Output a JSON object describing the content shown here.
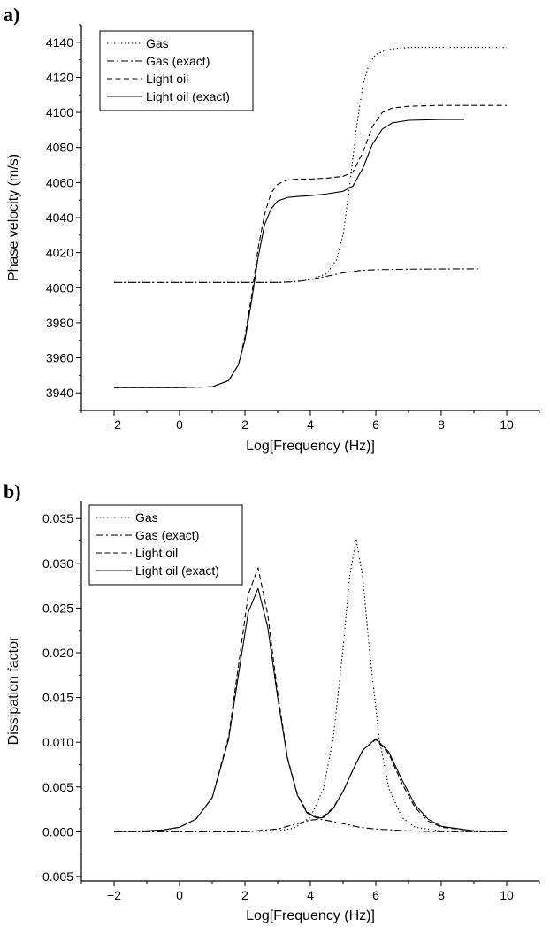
{
  "chart_data": [
    {
      "panel": "a)",
      "type": "line",
      "xlabel": "Log[Frequency (Hz)]",
      "ylabel": "Phase velocity (m/s)",
      "xlim": [
        -3,
        11
      ],
      "ylim": [
        3930,
        4150
      ],
      "xticks": [
        -2,
        0,
        2,
        4,
        6,
        8,
        10
      ],
      "xtick_labels": [
        "−2",
        "0",
        "2",
        "4",
        "6",
        "8",
        "10"
      ],
      "yticks": [
        3940,
        3960,
        3980,
        4000,
        4020,
        4040,
        4060,
        4080,
        4100,
        4120,
        4140
      ],
      "ytick_labels": [
        "3940",
        "3960",
        "3980",
        "4000",
        "4020",
        "4040",
        "4060",
        "4080",
        "4100",
        "4120",
        "4140"
      ],
      "legend": {
        "placement": "top-left",
        "entries": [
          "Gas",
          "Gas (exact)",
          "Light oil",
          "Light oil (exact)"
        ]
      },
      "series": [
        {
          "name": "Gas",
          "style": "dotted",
          "x": [
            -2,
            0,
            2,
            3,
            3.5,
            4,
            4.5,
            4.8,
            5.0,
            5.2,
            5.4,
            5.6,
            5.8,
            6.0,
            6.3,
            6.6,
            7,
            8,
            10
          ],
          "y": [
            4003,
            4003,
            4003,
            4003,
            4003.5,
            4004.5,
            4008,
            4016,
            4030,
            4058,
            4090,
            4115,
            4128,
            4133,
            4135.5,
            4136.5,
            4137,
            4137,
            4137
          ]
        },
        {
          "name": "Gas (exact)",
          "style": "dashdot",
          "x": [
            -2,
            0,
            2,
            3,
            3.5,
            4,
            4.5,
            5,
            5.5,
            6,
            7,
            8,
            9.2
          ],
          "y": [
            4003,
            4003,
            4003,
            4003,
            4003.3,
            4004.5,
            4006.5,
            4008.5,
            4009.8,
            4010.3,
            4010.6,
            4010.7,
            4010.8
          ]
        },
        {
          "name": "Light oil",
          "style": "dashed",
          "x": [
            -2,
            0,
            1,
            1.5,
            1.8,
            2.0,
            2.2,
            2.4,
            2.6,
            2.8,
            3.0,
            3.3,
            3.6,
            4.0,
            4.5,
            5.0,
            5.3,
            5.6,
            5.9,
            6.2,
            6.5,
            7,
            8,
            10
          ],
          "y": [
            3943,
            3943,
            3943.5,
            3947,
            3956,
            3972,
            3995,
            4022,
            4042,
            4054,
            4059,
            4061.5,
            4062,
            4062,
            4062.5,
            4063.5,
            4066,
            4077,
            4092,
            4100,
            4102.5,
            4103.5,
            4104,
            4104
          ]
        },
        {
          "name": "Light oil (exact)",
          "style": "solid",
          "x": [
            -2,
            0,
            1,
            1.5,
            1.8,
            2.0,
            2.2,
            2.4,
            2.6,
            2.8,
            3.0,
            3.3,
            3.6,
            4.0,
            4.5,
            5.0,
            5.3,
            5.6,
            5.9,
            6.2,
            6.5,
            7,
            8,
            8.7
          ],
          "y": [
            3943,
            3943,
            3943.5,
            3947,
            3956,
            3970,
            3992,
            4017,
            4036,
            4045,
            4049.5,
            4051.5,
            4052,
            4052.5,
            4053.5,
            4055,
            4058,
            4068,
            4082,
            4090.5,
            4094,
            4095.5,
            4096,
            4096
          ]
        }
      ]
    },
    {
      "panel": "b)",
      "type": "line",
      "xlabel": "Log[Frequency (Hz)]",
      "ylabel": "Dissipation factor",
      "xlim": [
        -3,
        11
      ],
      "ylim": [
        -0.0055,
        0.037
      ],
      "xticks": [
        -2,
        0,
        2,
        4,
        6,
        8,
        10
      ],
      "xtick_labels": [
        "−2",
        "0",
        "2",
        "4",
        "6",
        "8",
        "10"
      ],
      "yticks": [
        -0.005,
        0.0,
        0.005,
        0.01,
        0.015,
        0.02,
        0.025,
        0.03,
        0.035
      ],
      "ytick_labels": [
        "−0.005",
        "0.000",
        "0.005",
        "0.010",
        "0.015",
        "0.020",
        "0.025",
        "0.030",
        "0.035"
      ],
      "legend": {
        "placement": "top-left",
        "entries": [
          "Gas",
          "Gas (exact)",
          "Light oil",
          "Light oil (exact)"
        ]
      },
      "series": [
        {
          "name": "Gas",
          "style": "dotted",
          "x": [
            -2,
            2,
            3,
            3.5,
            4,
            4.4,
            4.7,
            5.0,
            5.2,
            5.4,
            5.6,
            5.8,
            6.1,
            6.4,
            6.8,
            7.2,
            8,
            9,
            10
          ],
          "y": [
            0,
            0,
            0.0001,
            0.0004,
            0.0016,
            0.0048,
            0.0105,
            0.0205,
            0.0285,
            0.0327,
            0.0285,
            0.0205,
            0.0105,
            0.0048,
            0.0016,
            0.0005,
            0.0001,
            0,
            0
          ]
        },
        {
          "name": "Gas (exact)",
          "style": "dashdot",
          "x": [
            -2,
            2,
            3,
            3.5,
            4,
            4.3,
            4.6,
            5,
            5.5,
            6,
            7,
            8,
            10
          ],
          "y": [
            0,
            0,
            0.0003,
            0.0008,
            0.0013,
            0.0014,
            0.0012,
            0.0009,
            0.0005,
            0.0003,
            0.0001,
            0,
            0
          ]
        },
        {
          "name": "Light oil",
          "style": "dashed",
          "x": [
            -2,
            -1,
            -0.5,
            0,
            0.5,
            1.0,
            1.5,
            1.8,
            2.1,
            2.4,
            2.7,
            3.0,
            3.3,
            3.6,
            3.9,
            4.2,
            4.4,
            4.7,
            5.0,
            5.3,
            5.6,
            6.0,
            6.4,
            6.8,
            7.2,
            7.6,
            8,
            9,
            10
          ],
          "y": [
            0,
            0.0001,
            0.0002,
            0.0005,
            0.0014,
            0.0038,
            0.0106,
            0.0185,
            0.0265,
            0.0295,
            0.0242,
            0.0155,
            0.0083,
            0.0042,
            0.0022,
            0.0016,
            0.0017,
            0.0027,
            0.0045,
            0.0069,
            0.0091,
            0.0103,
            0.0087,
            0.0054,
            0.0027,
            0.0012,
            0.0005,
            0.0001,
            0
          ]
        },
        {
          "name": "Light oil (exact)",
          "style": "solid",
          "x": [
            -2,
            -1,
            -0.5,
            0,
            0.5,
            1.0,
            1.5,
            1.8,
            2.1,
            2.4,
            2.7,
            3.0,
            3.3,
            3.6,
            3.9,
            4.2,
            4.4,
            4.7,
            5.0,
            5.3,
            5.6,
            6.0,
            6.4,
            6.8,
            7.2,
            7.6,
            8,
            9,
            10
          ],
          "y": [
            0,
            0.0001,
            0.0002,
            0.0005,
            0.0014,
            0.0038,
            0.0103,
            0.0175,
            0.0245,
            0.0272,
            0.0228,
            0.015,
            0.0082,
            0.0041,
            0.0021,
            0.0015,
            0.0016,
            0.0026,
            0.0045,
            0.0069,
            0.0091,
            0.0104,
            0.0089,
            0.0058,
            0.003,
            0.0014,
            0.0006,
            0.0001,
            0
          ]
        }
      ]
    }
  ]
}
